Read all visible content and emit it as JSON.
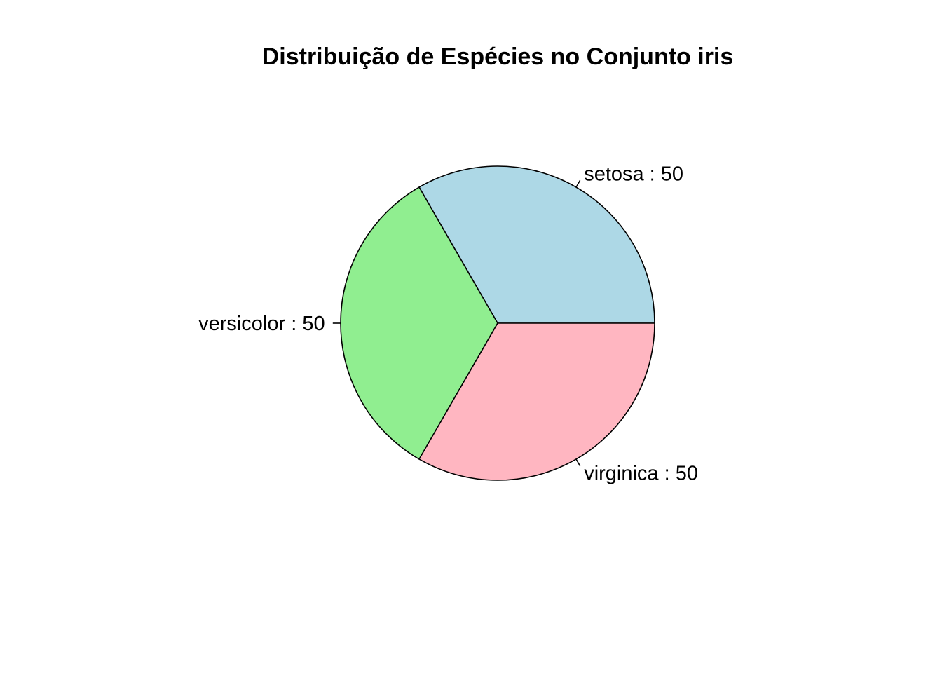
{
  "chart_data": {
    "type": "pie",
    "title": "Distribuição de Espécies no Conjunto iris",
    "direction": "counterclockwise",
    "start": "right (3 o'clock)",
    "slices": [
      {
        "category": "setosa",
        "value": 50,
        "label": "setosa : 50",
        "color": "#ADD8E6"
      },
      {
        "category": "versicolor",
        "value": 50,
        "label": "versicolor : 50",
        "color": "#90EE90"
      },
      {
        "category": "virginica",
        "value": 50,
        "label": "virginica : 50",
        "color": "#FFB6C1"
      }
    ],
    "legend": "none",
    "grid": false
  }
}
